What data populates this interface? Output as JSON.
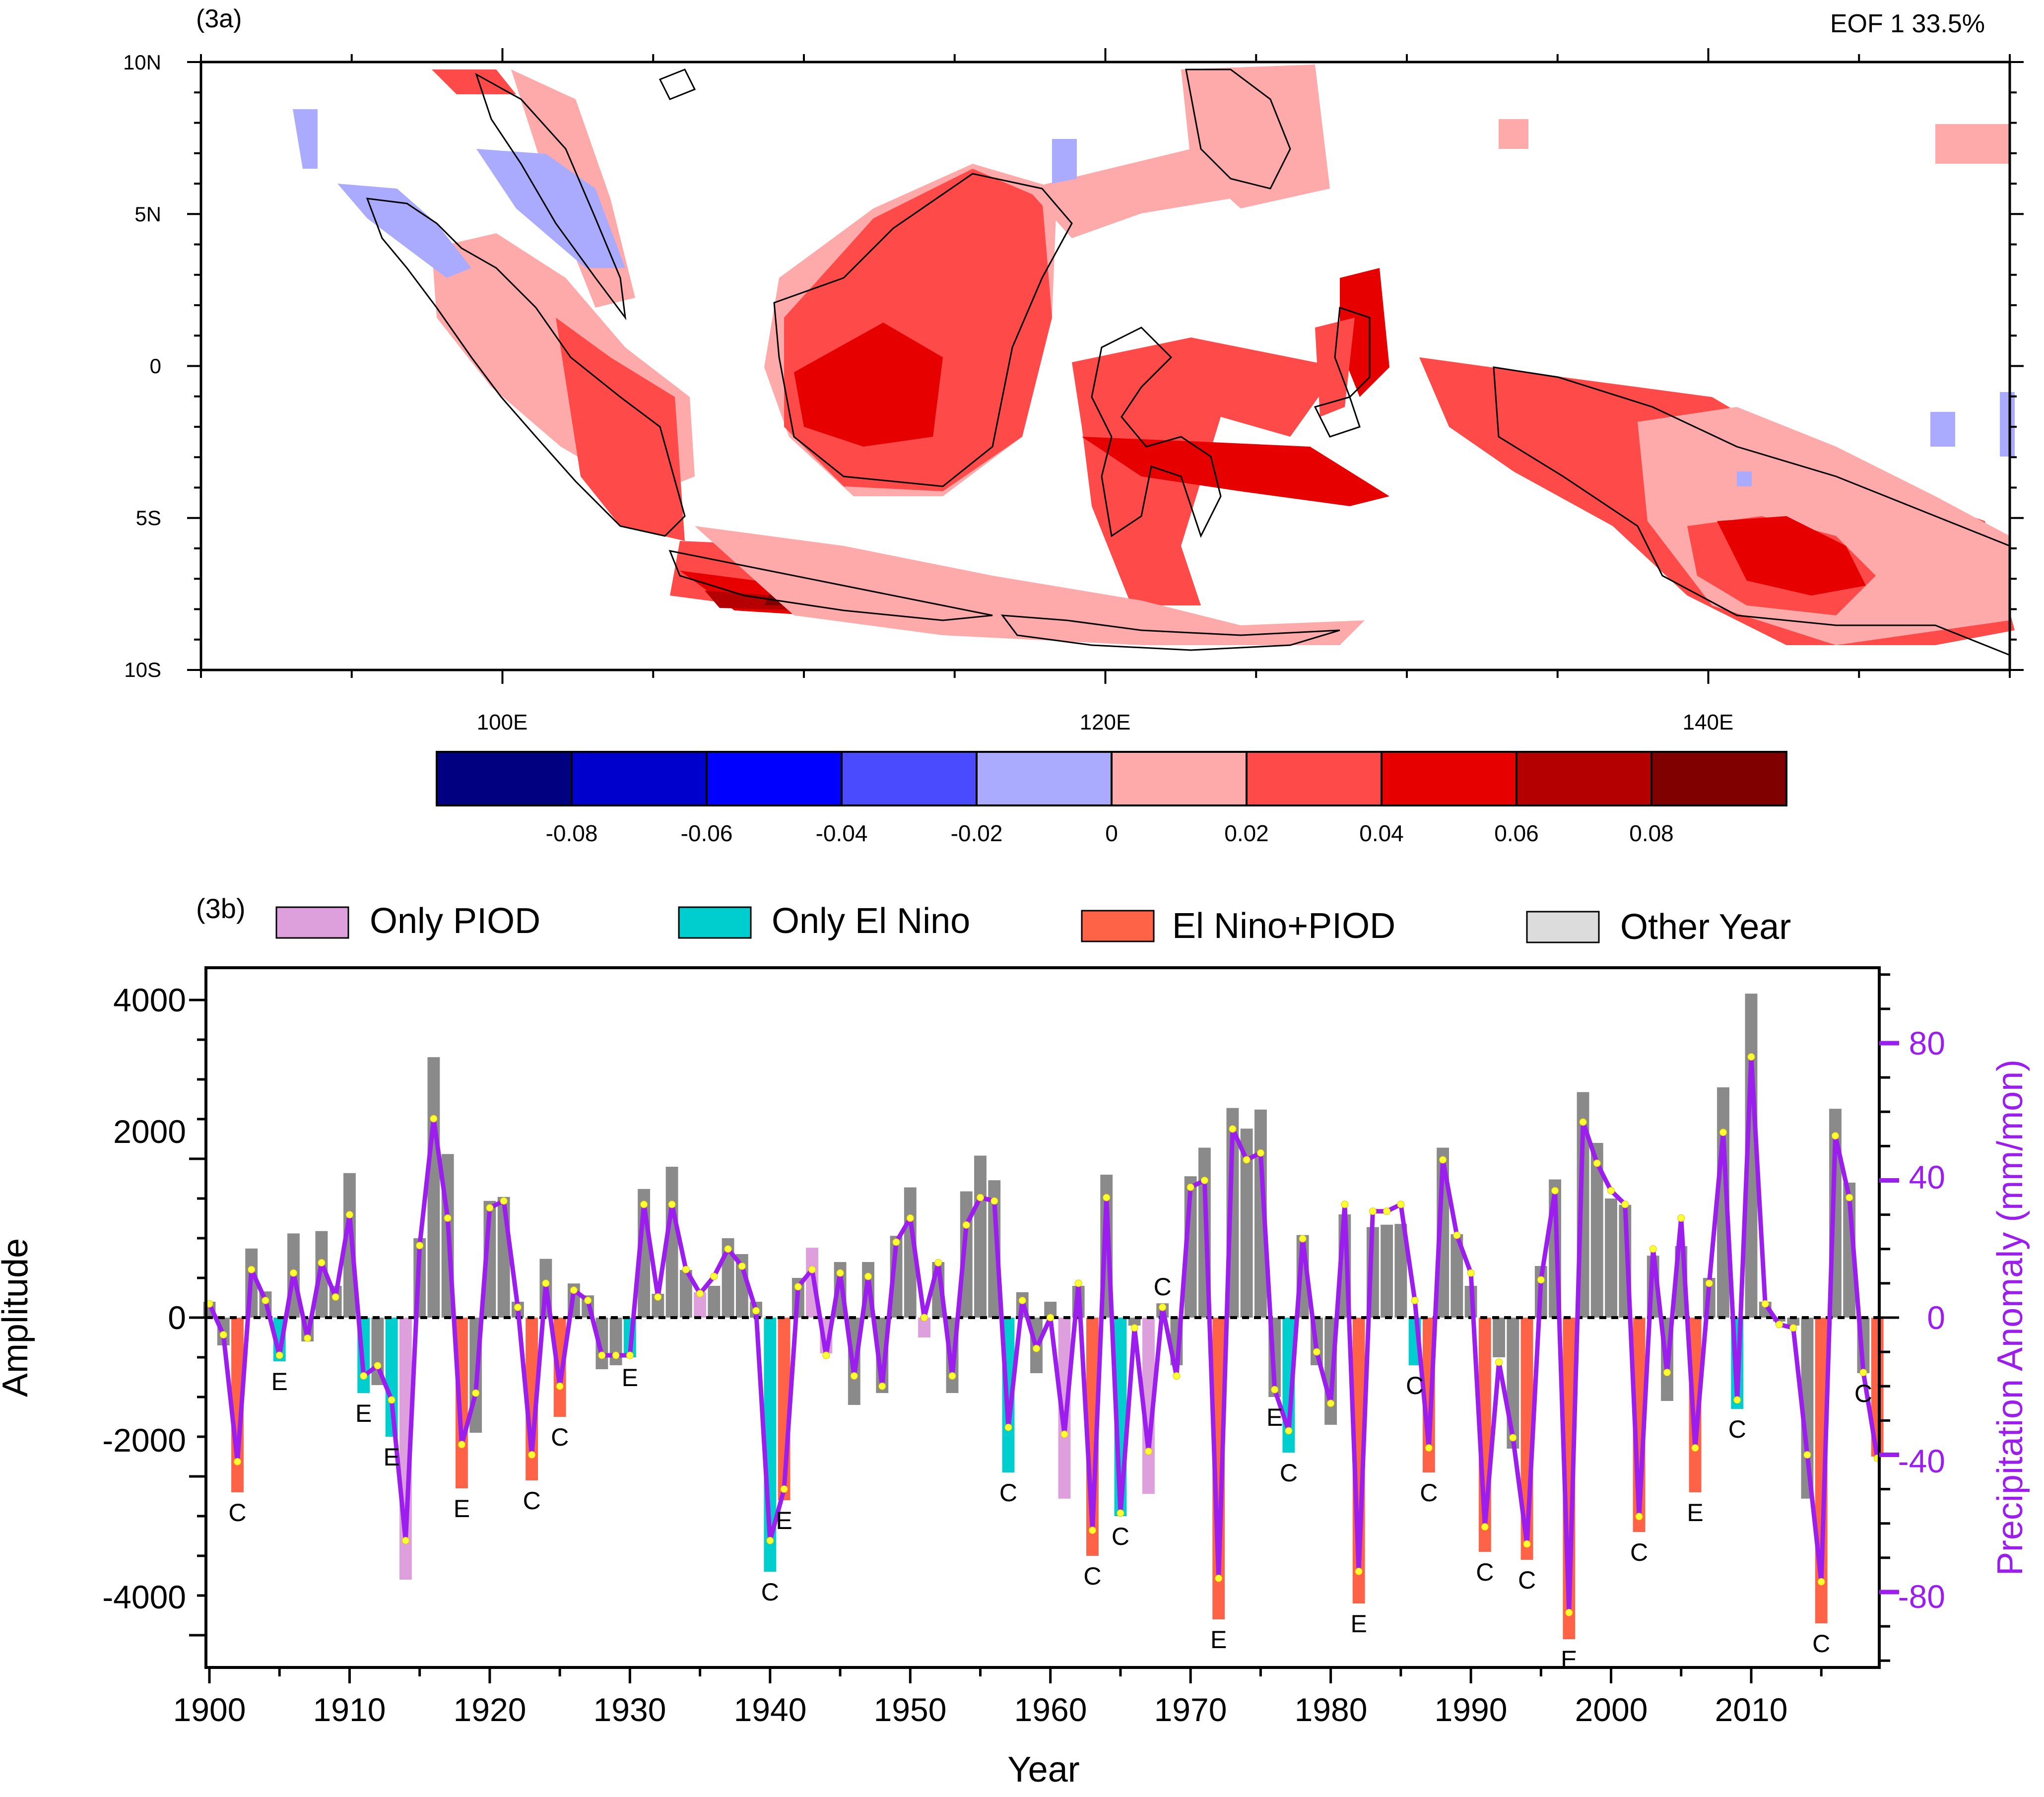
{
  "panel_a": {
    "label": "(3a)",
    "eof_title": "EOF 1  33.5%",
    "lat_labels": [
      "10N",
      "5N",
      "0",
      "5S",
      "10S"
    ],
    "lon_labels": [
      "100E",
      "120E",
      "140E"
    ],
    "colorbar": {
      "colors": [
        "#000080",
        "#0000cd",
        "#0000ff",
        "#4a4aff",
        "#aaaaff",
        "#ffaaaa",
        "#ff4a4a",
        "#e60000",
        "#b40000",
        "#800000"
      ],
      "tick_labels": [
        "-0.08",
        "-0.06",
        "-0.04",
        "-0.02",
        "0",
        "0.02",
        "0.04",
        "0.06",
        "0.08"
      ]
    }
  },
  "panel_b": {
    "label": "(3b)",
    "legend": [
      {
        "label": "Only PIOD",
        "color": "#dda0dd"
      },
      {
        "label": "Only El Nino",
        "color": "#00cdcd"
      },
      {
        "label": "El Nino+PIOD",
        "color": "#ff6347"
      },
      {
        "label": "Other Year",
        "color": "#dcdcdc"
      }
    ],
    "ylabel": "Amplitude",
    "y2label": "Precipitation Anomaly (mm/mon)",
    "xlabel": "Year",
    "x_ticks": [
      "1900",
      "1910",
      "1920",
      "1930",
      "1940",
      "1950",
      "1960",
      "1970",
      "1980",
      "1990",
      "2000",
      "2010"
    ],
    "y_ticks": [
      "4000",
      "2000",
      "0",
      "-2000",
      "-4000"
    ],
    "y2_ticks": [
      "80",
      "40",
      "0",
      "-40",
      "-80"
    ]
  },
  "chart_data": [
    {
      "type": "heatmap",
      "title": "EOF 1  33.5%",
      "xlim": [
        90,
        150
      ],
      "ylim": [
        -10,
        10
      ],
      "x_ticks": [
        "100E",
        "120E",
        "140E"
      ],
      "y_ticks": [
        "10N",
        "5N",
        "0",
        "5S",
        "10S"
      ],
      "levels": [
        -0.08,
        -0.06,
        -0.04,
        -0.02,
        0,
        0.02,
        0.04,
        0.06,
        0.08
      ],
      "regions": [
        {
          "lon": [
            93,
            97
          ],
          "lat": [
            1,
            9
          ],
          "level": "-0.02 to 0"
        },
        {
          "lon": [
            98,
            104
          ],
          "lat": [
            -6,
            4
          ],
          "level": "0 to 0.04"
        },
        {
          "lon": [
            105,
            115
          ],
          "lat": [
            -9,
            -6
          ],
          "level": "0.02 to 0.08"
        },
        {
          "lon": [
            108,
            118
          ],
          "lat": [
            -4,
            6
          ],
          "level": "0.02 to 0.06"
        },
        {
          "lon": [
            119,
            127
          ],
          "lat": [
            -6,
            2
          ],
          "level": "0.02 to 0.06"
        },
        {
          "lon": [
            121,
            127
          ],
          "lat": [
            4,
            10
          ],
          "level": "0 to 0.04"
        },
        {
          "lon": [
            131,
            150
          ],
          "lat": [
            -9,
            -1
          ],
          "level": "0.02 to 0.06"
        },
        {
          "lon": [
            146,
            150
          ],
          "lat": [
            -3,
            -2
          ],
          "level": "-0.02 to 0"
        }
      ]
    },
    {
      "type": "bar",
      "title": "",
      "xlabel": "Year",
      "ylabel": "Amplitude",
      "y2label": "Precipitation Anomaly (mm/mon)",
      "xlim": [
        1900,
        2019
      ],
      "ylim": [
        -5000,
        5000
      ],
      "y2lim": [
        -108,
        108
      ],
      "x": [
        1900,
        1901,
        1902,
        1903,
        1904,
        1905,
        1906,
        1907,
        1908,
        1909,
        1910,
        1911,
        1912,
        1913,
        1914,
        1915,
        1916,
        1917,
        1918,
        1919,
        1920,
        1921,
        1922,
        1923,
        1924,
        1925,
        1926,
        1927,
        1928,
        1929,
        1930,
        1931,
        1932,
        1933,
        1934,
        1935,
        1936,
        1937,
        1938,
        1939,
        1940,
        1941,
        1942,
        1943,
        1944,
        1945,
        1946,
        1947,
        1948,
        1949,
        1950,
        1951,
        1952,
        1953,
        1954,
        1955,
        1956,
        1957,
        1958,
        1959,
        1960,
        1961,
        1962,
        1963,
        1964,
        1965,
        1966,
        1967,
        1968,
        1969,
        1970,
        1971,
        1972,
        1973,
        1974,
        1975,
        1976,
        1977,
        1978,
        1979,
        1980,
        1981,
        1982,
        1983,
        1984,
        1985,
        1986,
        1987,
        1988,
        1989,
        1990,
        1991,
        1992,
        1993,
        1994,
        1995,
        1996,
        1997,
        1998,
        1999,
        2000,
        2001,
        2002,
        2003,
        2004,
        2005,
        2006,
        2007,
        2008,
        2009,
        2010,
        2011,
        2012,
        2013,
        2014,
        2015,
        2016,
        2017,
        2018,
        2019
      ],
      "series": [
        {
          "name": "Amplitude",
          "values": [
            200,
            -350,
            -2200,
            870,
            330,
            -550,
            1060,
            -300,
            1090,
            400,
            1820,
            -950,
            -850,
            -1500,
            -3300,
            1000,
            3280,
            2060,
            -2150,
            -1450,
            1470,
            1520,
            200,
            -2050,
            740,
            -1250,
            430,
            280,
            -650,
            -600,
            -500,
            1620,
            300,
            1900,
            600,
            320,
            400,
            1000,
            800,
            200,
            -3200,
            -2300,
            500,
            880,
            -450,
            700,
            -1100,
            700,
            -950,
            1030,
            1640,
            -250,
            700,
            -950,
            1590,
            2040,
            1730,
            -1950,
            320,
            -700,
            200,
            -2280,
            400,
            -3000,
            1800,
            -2500,
            -100,
            -2220,
            180,
            -600,
            1780,
            2140,
            -3800,
            2640,
            2380,
            2620,
            -1000,
            -1700,
            1040,
            -600,
            -1350,
            1300,
            -3600,
            1140,
            1170,
            1180,
            -600,
            -1950,
            2140,
            1050,
            400,
            -2950,
            -500,
            -1650,
            -3050,
            650,
            1740,
            -4050,
            2840,
            2200,
            1500,
            1420,
            -2700,
            780,
            -1050,
            900,
            -2200,
            500,
            2900,
            -1150,
            4080,
            200,
            -50,
            -100,
            -2280,
            -3850,
            2630,
            1700,
            -700,
            -1750
          ]
        },
        {
          "name": "Precipitation Anomaly",
          "values": [
            4,
            -5,
            -42,
            14,
            5,
            -11,
            13,
            -6,
            16,
            6,
            30,
            -17,
            -14,
            -24,
            -65,
            21,
            58,
            29,
            -37,
            -22,
            32,
            34,
            3,
            -40,
            10,
            -20,
            8,
            5,
            -11,
            -11,
            -11,
            33,
            6,
            33,
            14,
            7,
            12,
            20,
            15,
            2,
            -65,
            -50,
            9,
            14,
            -11,
            13,
            -17,
            12,
            -20,
            22,
            29,
            0,
            16,
            -17,
            27,
            35,
            34,
            -32,
            5,
            -9,
            0,
            -34,
            10,
            -62,
            35,
            -57,
            -3,
            -39,
            3,
            -17,
            38,
            40,
            -76,
            55,
            46,
            48,
            -21,
            -33,
            23,
            -10,
            -25,
            33,
            -74,
            31,
            31,
            33,
            5,
            -38,
            46,
            24,
            13,
            -61,
            -13,
            -35,
            -66,
            11,
            37,
            -86,
            57,
            45,
            37,
            33,
            -58,
            20,
            -16,
            29,
            -38,
            10,
            54,
            -24,
            76,
            4,
            -2,
            -3,
            -40,
            -77,
            53,
            35,
            -16,
            -41
          ]
        }
      ],
      "annotations": [
        {
          "x": 1902,
          "text": "C"
        },
        {
          "x": 1905,
          "text": "E"
        },
        {
          "x": 1911,
          "text": "E"
        },
        {
          "x": 1913,
          "text": "E"
        },
        {
          "x": 1918,
          "text": "E"
        },
        {
          "x": 1923,
          "text": "C"
        },
        {
          "x": 1925,
          "text": "C"
        },
        {
          "x": 1930,
          "text": "E"
        },
        {
          "x": 1940,
          "text": "C"
        },
        {
          "x": 1941,
          "text": "E"
        },
        {
          "x": 1957,
          "text": "C"
        },
        {
          "x": 1963,
          "text": "C"
        },
        {
          "x": 1965,
          "text": "C"
        },
        {
          "x": 1968,
          "text": "C"
        },
        {
          "x": 1972,
          "text": "E"
        },
        {
          "x": 1976,
          "text": "E"
        },
        {
          "x": 1977,
          "text": "C"
        },
        {
          "x": 1982,
          "text": "E"
        },
        {
          "x": 1986,
          "text": "C"
        },
        {
          "x": 1987,
          "text": "C"
        },
        {
          "x": 1991,
          "text": "C"
        },
        {
          "x": 1994,
          "text": "C"
        },
        {
          "x": 1997,
          "text": "E"
        },
        {
          "x": 2002,
          "text": "C"
        },
        {
          "x": 2006,
          "text": "E"
        },
        {
          "x": 2009,
          "text": "C"
        },
        {
          "x": 2015,
          "text": "C"
        },
        {
          "x": 2018,
          "text": "C"
        }
      ],
      "categories_by_year": {
        "only_piod": [
          1914,
          1935,
          1943,
          1944,
          1951,
          1961,
          1967
        ],
        "only_el_nino": [
          1905,
          1911,
          1913,
          1930,
          1940,
          1957,
          1965,
          1977,
          1986,
          2009
        ],
        "el_nino_piod": [
          1902,
          1918,
          1923,
          1925,
          1941,
          1963,
          1972,
          1982,
          1987,
          1991,
          1994,
          1997,
          2002,
          2006,
          2015,
          2019
        ]
      }
    }
  ]
}
